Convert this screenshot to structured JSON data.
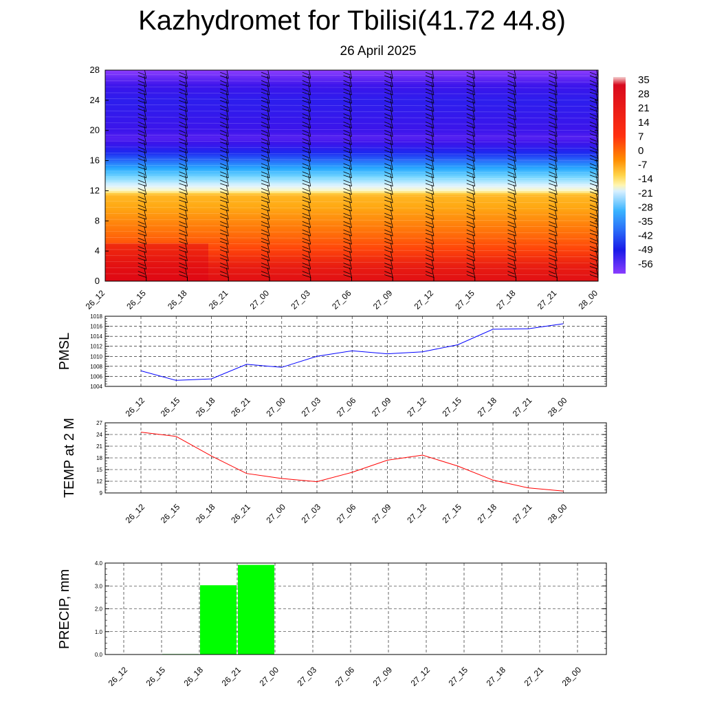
{
  "header": {
    "title": "Kazhydromet for Tbilisi(41.72 44.8)",
    "date": "26 April 2025"
  },
  "colors": {
    "pmsl_line": "#0000ff",
    "temp_line": "#ff0000",
    "precip_bar": "#00ff00",
    "grid": "#000000"
  },
  "chart_data": [
    {
      "type": "heatmap",
      "title": "",
      "description_of_axes": "",
      "x": [
        "26_12",
        "26_15",
        "26_18",
        "26_21",
        "27_00",
        "27_03",
        "27_06",
        "27_09",
        "27_12",
        "27_15",
        "27_18",
        "27_21",
        "28_00"
      ],
      "ylim": [
        0,
        28
      ],
      "yticks": [
        0,
        4,
        8,
        12,
        16,
        20,
        24,
        28
      ],
      "colorbar": {
        "labels": [
          "35",
          "28",
          "21",
          "14",
          "7",
          "0",
          "-7",
          "-14",
          "-21",
          "-28",
          "-35",
          "-42",
          "-49",
          "-56"
        ],
        "range": [
          -60,
          38
        ]
      },
      "temperature_profile": {
        "z": [
          0,
          2,
          4,
          6,
          8,
          10,
          11.5,
          12,
          13,
          14,
          15,
          16,
          17,
          18,
          19,
          20,
          22,
          24,
          26,
          28
        ],
        "t": [
          22,
          20,
          15,
          10,
          6,
          2,
          0,
          -12,
          -18,
          -25,
          -32,
          -40,
          -47,
          -54,
          -58,
          -56,
          -54,
          -52,
          -56,
          -62
        ]
      },
      "wind_barbs": true
    },
    {
      "type": "line",
      "ylabel": "PMSL",
      "categories": [
        "26_12",
        "26_15",
        "26_18",
        "26_21",
        "27_00",
        "27_03",
        "27_06",
        "27_09",
        "27_12",
        "27_15",
        "27_18",
        "27_21",
        "28_00"
      ],
      "values": [
        1007.1,
        1005.2,
        1005.5,
        1008.4,
        1007.8,
        1010.0,
        1011.1,
        1010.5,
        1010.9,
        1012.3,
        1015.4,
        1015.5,
        1016.5
      ],
      "ylim": [
        1004,
        1018
      ],
      "yticks": [
        "1004",
        "1006",
        "1008",
        "1010",
        "1012",
        "1014",
        "1016",
        "1018"
      ],
      "grid": true
    },
    {
      "type": "line",
      "ylabel": "TEMP at 2 M",
      "categories": [
        "26_12",
        "26_15",
        "26_18",
        "26_21",
        "27_00",
        "27_03",
        "27_06",
        "27_09",
        "27_12",
        "27_15",
        "27_18",
        "27_21",
        "28_00"
      ],
      "values": [
        24.6,
        23.5,
        18.5,
        14.0,
        12.7,
        11.9,
        14.3,
        17.4,
        18.7,
        15.9,
        12.3,
        10.3,
        9.5
      ],
      "ylim": [
        9,
        27
      ],
      "yticks": [
        "9",
        "12",
        "15",
        "18",
        "21",
        "24",
        "27"
      ],
      "grid": true
    },
    {
      "type": "bar",
      "ylabel": "PRECIP, mm",
      "categories": [
        "26_12",
        "26_15",
        "26_18",
        "26_21",
        "27_00",
        "27_03",
        "27_06",
        "27_09",
        "27_12",
        "27_15",
        "27_18",
        "27_21",
        "28_00"
      ],
      "values": [
        0,
        0,
        0.02,
        3.03,
        3.92,
        0,
        0,
        0,
        0,
        0,
        0,
        0,
        0
      ],
      "ylim": [
        0,
        4
      ],
      "yticks": [
        "0.0",
        "1.0",
        "2.0",
        "3.0",
        "4.0"
      ],
      "grid": true
    }
  ]
}
